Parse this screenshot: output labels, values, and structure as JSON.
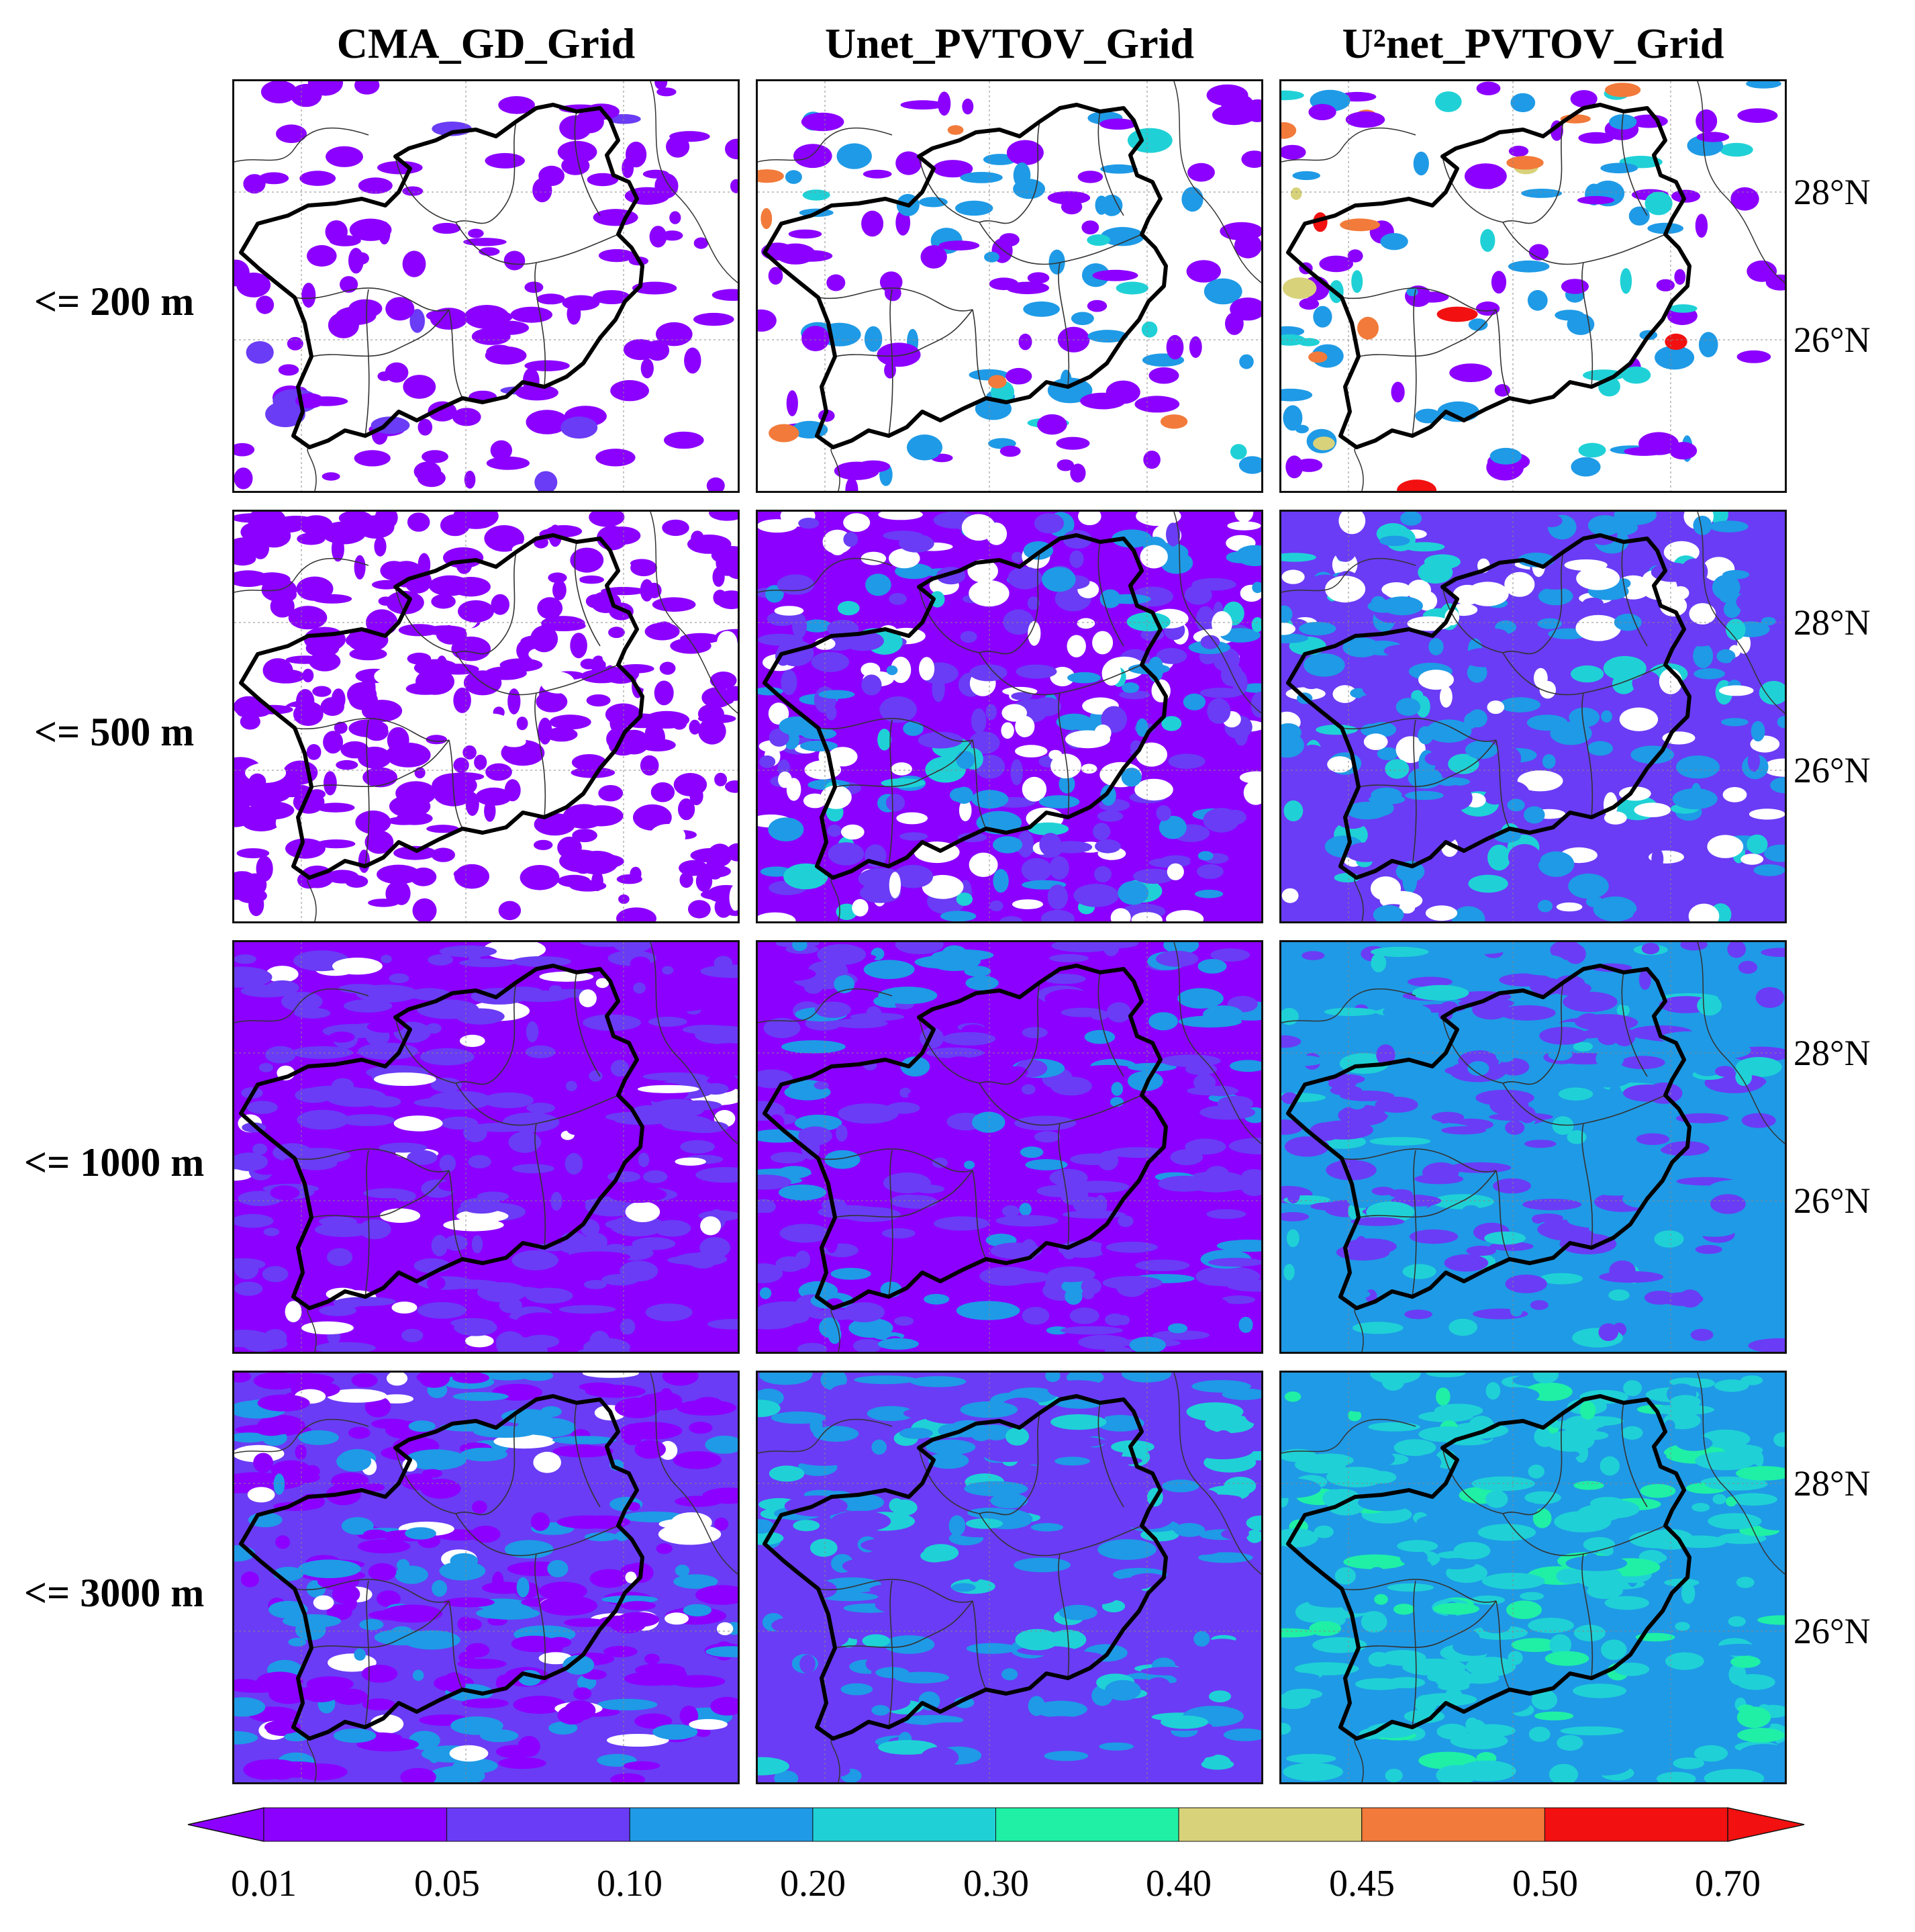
{
  "columns": [
    {
      "title": "CMA_GD_Grid"
    },
    {
      "title": "Unet_PVTOV_Grid"
    },
    {
      "title": "U²net_PVTOV_Grid"
    }
  ],
  "rows": [
    {
      "label": "<= 200 m"
    },
    {
      "label": "<= 500 m"
    },
    {
      "label": "<= 1000 m"
    },
    {
      "label": "<= 3000 m"
    }
  ],
  "lat_labels": [
    "28°N",
    "26°N"
  ],
  "colorbar": {
    "ticks": [
      "0.01",
      "0.05",
      "0.10",
      "0.20",
      "0.30",
      "0.40",
      "0.45",
      "0.50",
      "0.70"
    ],
    "colors": [
      "#8b00ff",
      "#6a3cf5",
      "#1f9ae6",
      "#1fd1d6",
      "#1ff0a6",
      "#d8d27a",
      "#f27a3a",
      "#f21010"
    ],
    "extend": "both"
  },
  "colors": {
    "boundary": "#000000",
    "county_lines": "#333333",
    "grid_lines": "#888888"
  }
}
